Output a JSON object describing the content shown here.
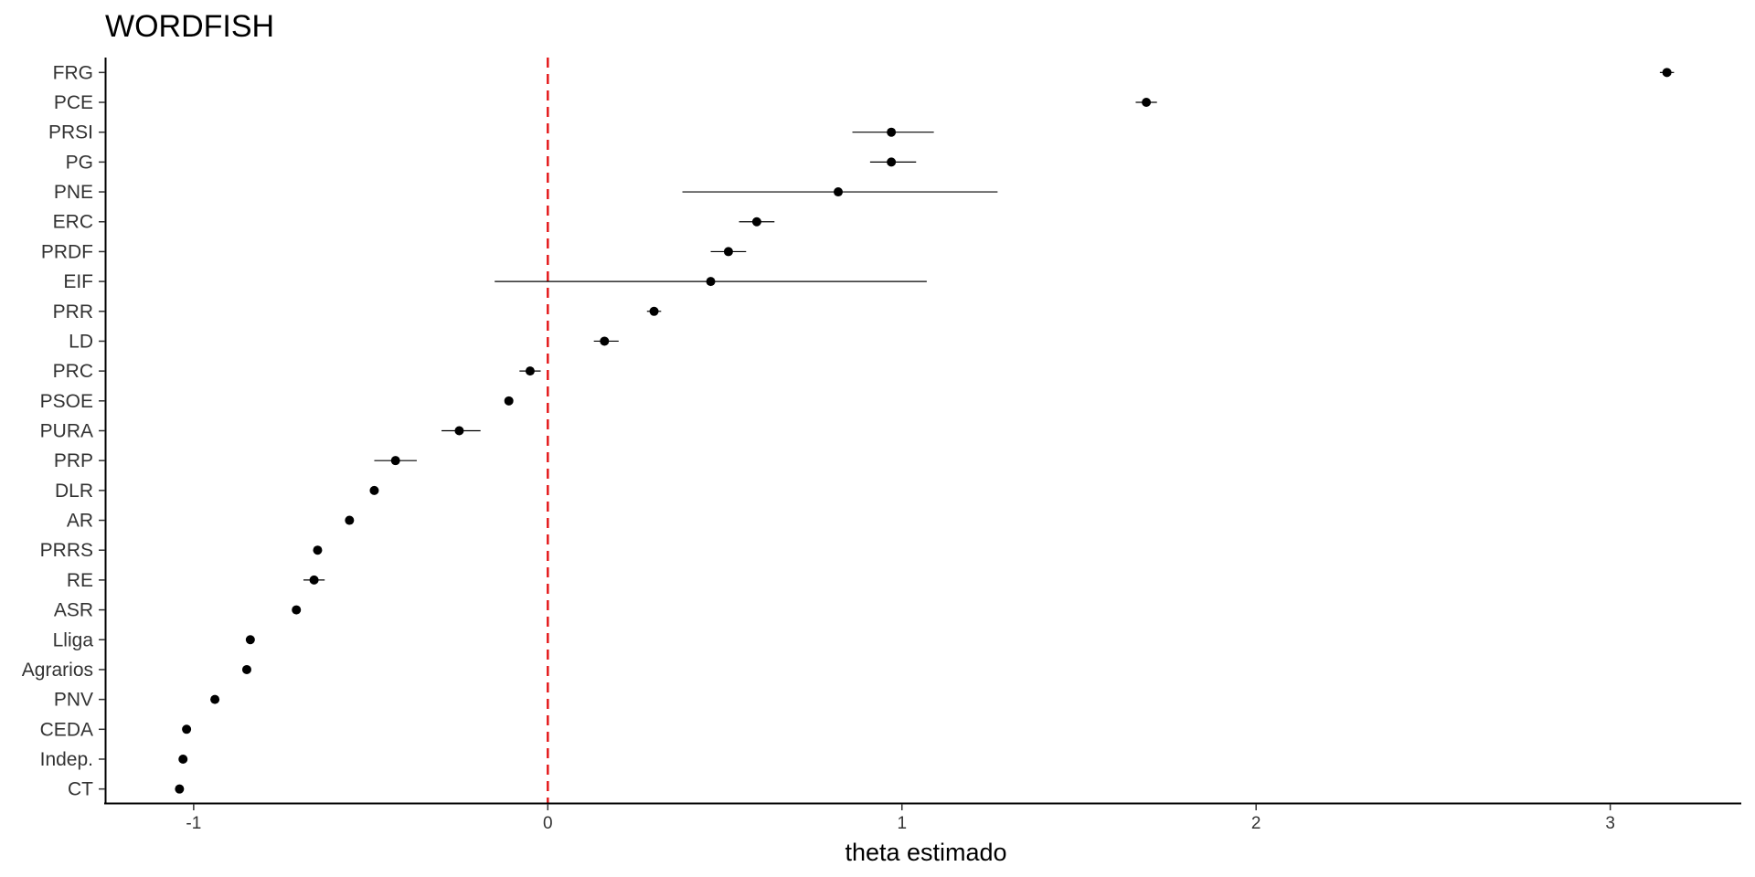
{
  "chart_data": {
    "type": "scatter",
    "title": "WORDFISH",
    "xlabel": "theta estimado",
    "ylabel": "",
    "xlim": [
      -1.25,
      3.37
    ],
    "xticks": [
      -1,
      0,
      1,
      2,
      3
    ],
    "xtick_labels": [
      "-1",
      "0",
      "1",
      "2",
      "3"
    ],
    "grid": false,
    "reference_line": {
      "x": 0,
      "color": "#e41a1c",
      "style": "dashed"
    },
    "point_color": "#000000",
    "categories": [
      "FRG",
      "PCE",
      "PRSI",
      "PG",
      "PNE",
      "ERC",
      "PRDF",
      "EIF",
      "PRR",
      "LD",
      "PRC",
      "PSOE",
      "PURA",
      "PRP",
      "DLR",
      "AR",
      "PRRS",
      "RE",
      "ASR",
      "Lliga",
      "Agrarios",
      "PNV",
      "CEDA",
      "Indep.",
      "CT"
    ],
    "values": [
      3.16,
      1.69,
      0.97,
      0.97,
      0.82,
      0.59,
      0.51,
      0.46,
      0.3,
      0.16,
      -0.05,
      -0.11,
      -0.25,
      -0.43,
      -0.49,
      -0.56,
      -0.65,
      -0.66,
      -0.71,
      -0.84,
      -0.85,
      -0.94,
      -1.02,
      -1.03,
      -1.04
    ],
    "lower": [
      3.14,
      1.66,
      0.86,
      0.91,
      0.38,
      0.54,
      0.46,
      -0.15,
      0.28,
      0.13,
      -0.08,
      -0.12,
      -0.3,
      -0.49,
      -0.5,
      -0.57,
      -0.66,
      -0.69,
      -0.72,
      -0.85,
      -0.86,
      -0.95,
      -1.03,
      -1.04,
      -1.05
    ],
    "upper": [
      3.18,
      1.72,
      1.09,
      1.04,
      1.27,
      0.64,
      0.56,
      1.07,
      0.32,
      0.2,
      -0.02,
      -0.1,
      -0.19,
      -0.37,
      -0.48,
      -0.55,
      -0.64,
      -0.63,
      -0.7,
      -0.83,
      -0.84,
      -0.93,
      -1.01,
      -1.02,
      -1.03
    ]
  }
}
